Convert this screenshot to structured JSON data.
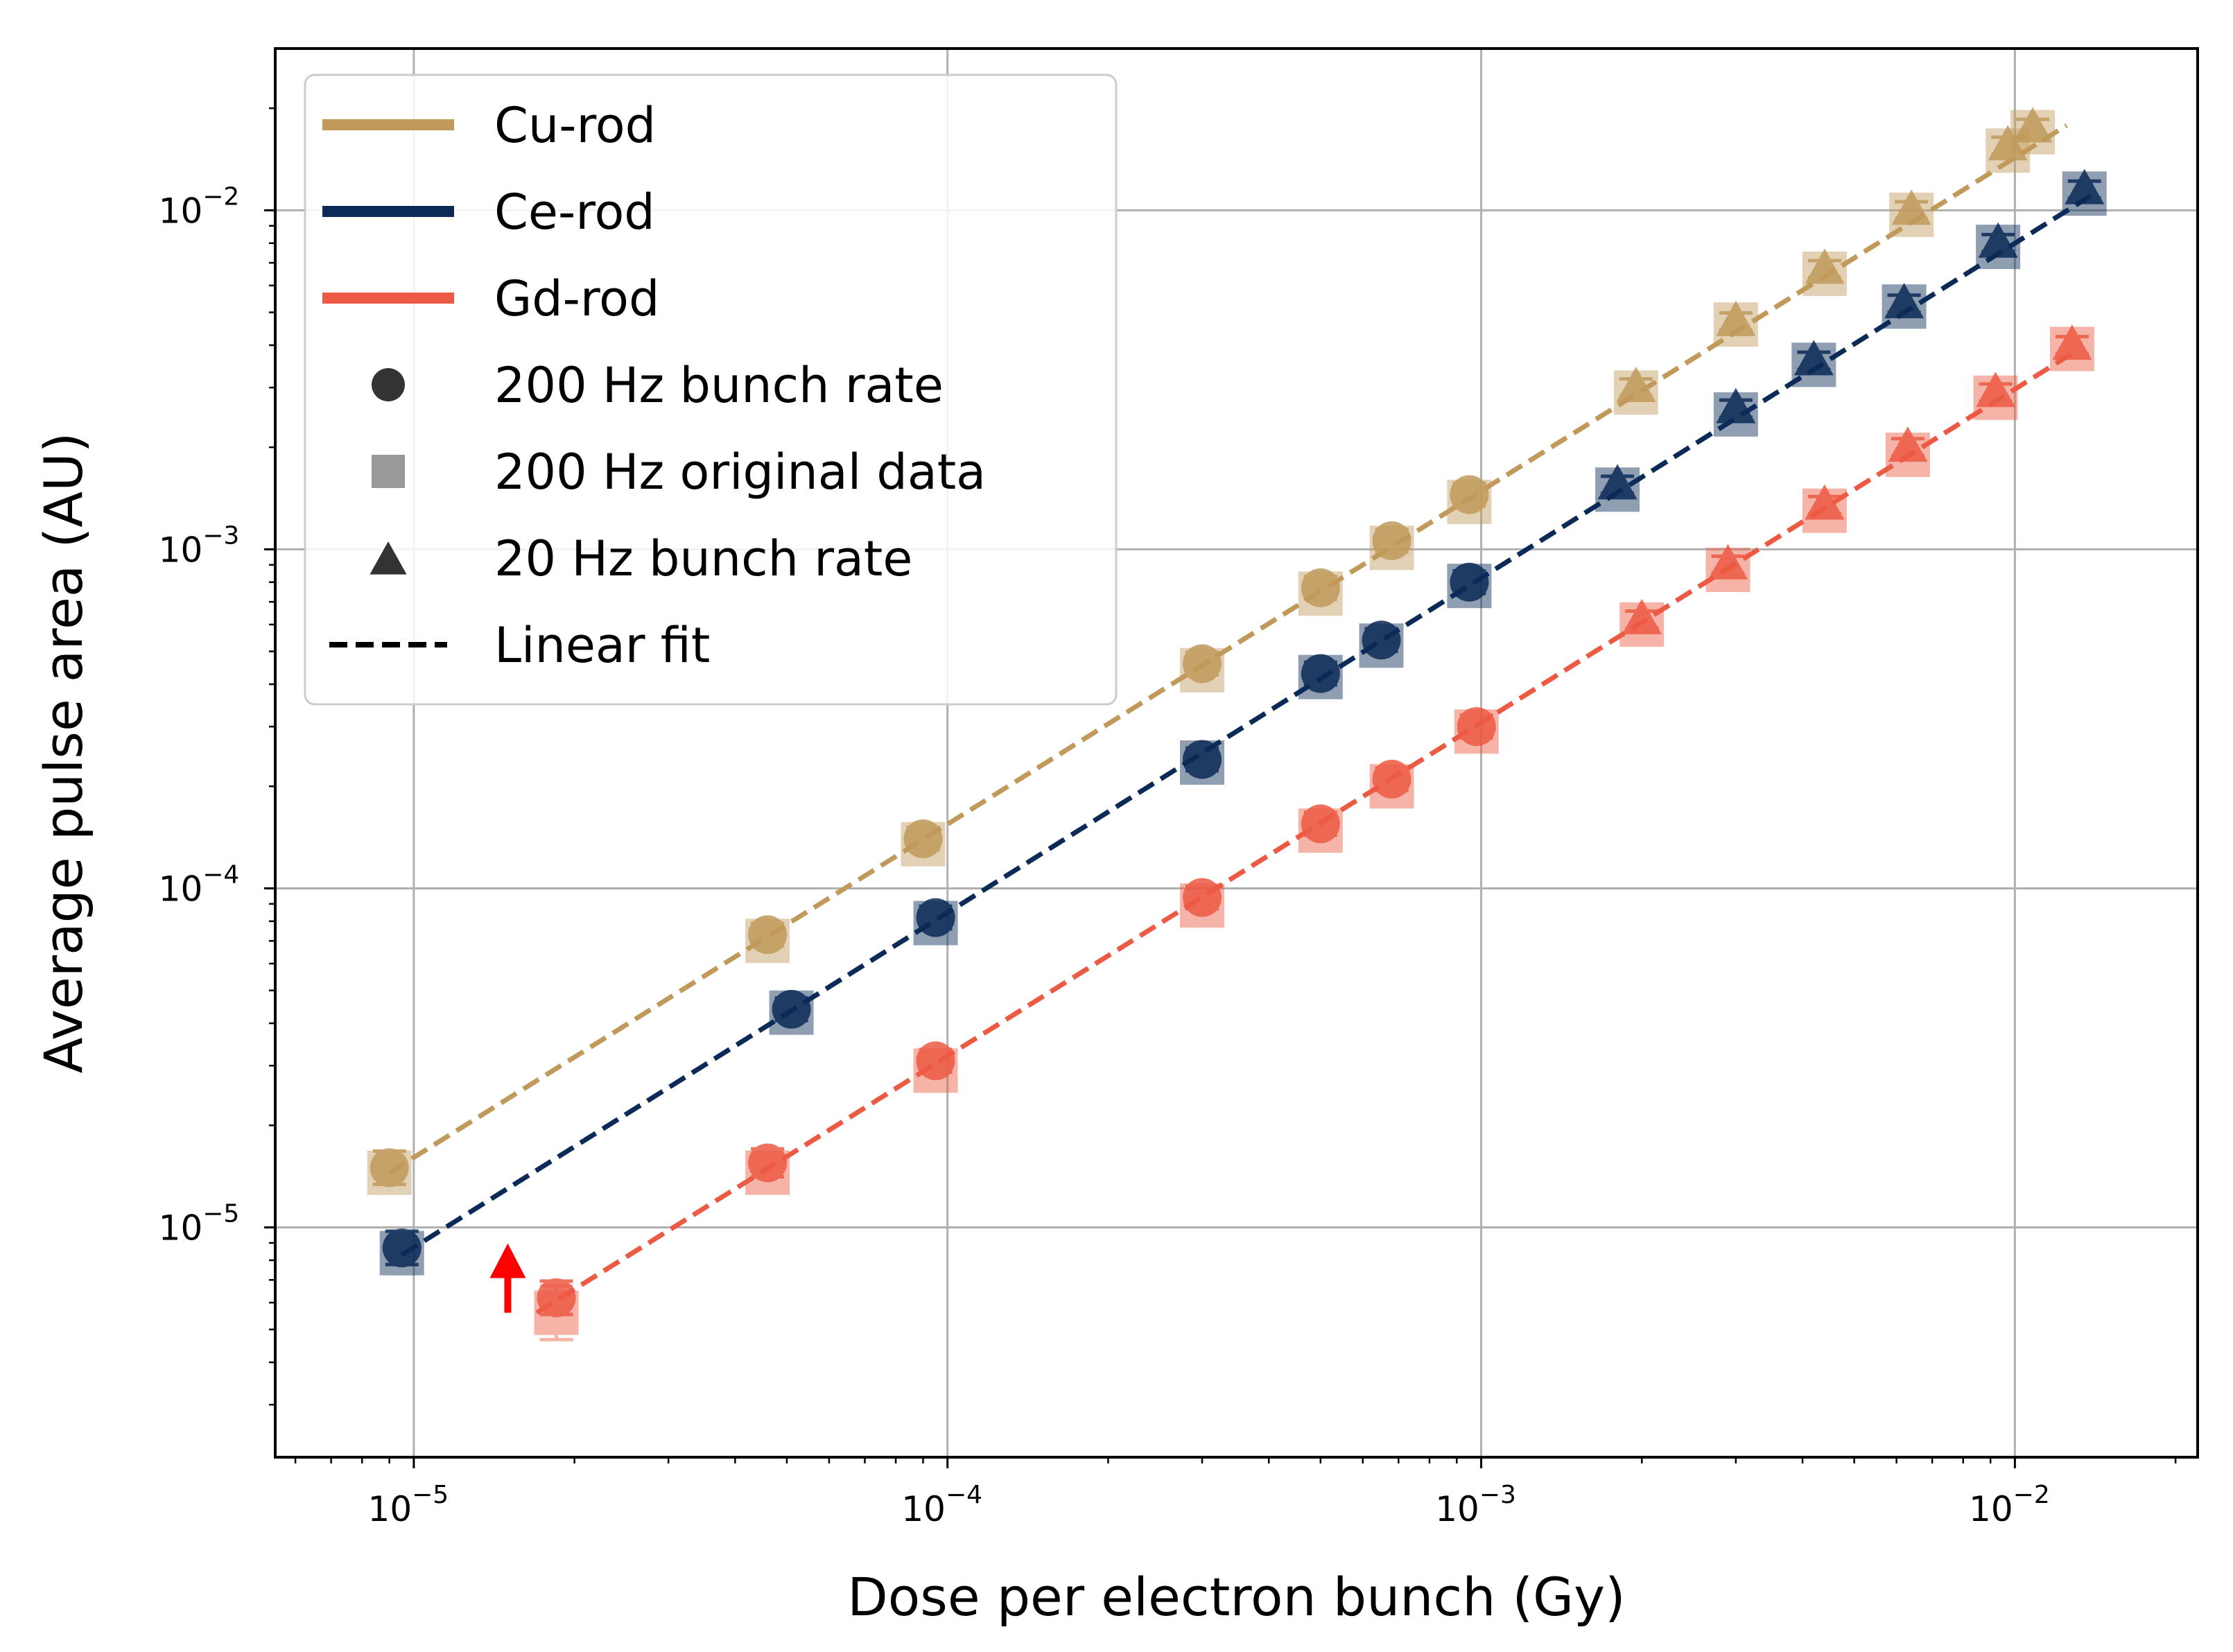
{
  "chart_data": {
    "type": "scatter",
    "xscale": "log",
    "yscale": "log",
    "xlabel": "Dose per electron bunch (Gy)",
    "ylabel": "Average pulse area (AU)",
    "xlim": [
      5.5e-06,
      0.022
    ],
    "ylim": [
      2.1e-06,
      0.03
    ],
    "grid": true,
    "legend_position": "upper-left",
    "x_ticks": [
      {
        "value": 1e-05,
        "base": "10",
        "exp": "−5"
      },
      {
        "value": 0.0001,
        "base": "10",
        "exp": "−4"
      },
      {
        "value": 0.001,
        "base": "10",
        "exp": "−3"
      },
      {
        "value": 0.01,
        "base": "10",
        "exp": "−2"
      }
    ],
    "y_ticks": [
      {
        "value": 1e-05,
        "base": "10",
        "exp": "−5"
      },
      {
        "value": 0.0001,
        "base": "10",
        "exp": "−4"
      },
      {
        "value": 0.001,
        "base": "10",
        "exp": "−3"
      },
      {
        "value": 0.01,
        "base": "10",
        "exp": "−2"
      }
    ],
    "legend": [
      {
        "label": "Cu-rod",
        "kind": "line",
        "color": "#c19a5b"
      },
      {
        "label": "Ce-rod",
        "kind": "line",
        "color": "#0b2a57"
      },
      {
        "label": "Gd-rod",
        "kind": "line",
        "color": "#ec5a43"
      },
      {
        "label": "200 Hz bunch rate",
        "kind": "circle",
        "color": "#333333"
      },
      {
        "label": "200 Hz original data",
        "kind": "square",
        "color": "#999999"
      },
      {
        "label": "20 Hz bunch rate",
        "kind": "triangle",
        "color": "#333333"
      },
      {
        "label": "Linear fit",
        "kind": "dashed",
        "color": "#000000"
      }
    ],
    "series": [
      {
        "name": "Cu-rod",
        "color": "#c19a5b",
        "fit": {
          "x": [
            9e-06,
            0.0125
          ],
          "y": [
            1.45e-05,
            0.0178
          ]
        },
        "points": [
          {
            "x": 9e-06,
            "y": 1.5e-05,
            "m": "circle",
            "err": 0.12
          },
          {
            "x": 9e-06,
            "y": 1.45e-05,
            "m": "square",
            "err": 0.15
          },
          {
            "x": 4.6e-05,
            "y": 7.3e-05,
            "m": "circle",
            "err": 0.08
          },
          {
            "x": 4.6e-05,
            "y": 7e-05,
            "m": "square",
            "err": 0.1
          },
          {
            "x": 9e-05,
            "y": 0.00014,
            "m": "circle",
            "err": 0.08
          },
          {
            "x": 9e-05,
            "y": 0.000135,
            "m": "square",
            "err": 0.1
          },
          {
            "x": 0.0003,
            "y": 0.00046,
            "m": "circle",
            "err": 0.08
          },
          {
            "x": 0.0003,
            "y": 0.00044,
            "m": "square",
            "err": 0.1
          },
          {
            "x": 0.0005,
            "y": 0.00077,
            "m": "circle",
            "err": 0.08
          },
          {
            "x": 0.0005,
            "y": 0.00074,
            "m": "square",
            "err": 0.1
          },
          {
            "x": 0.00068,
            "y": 0.00106,
            "m": "circle",
            "err": 0.08
          },
          {
            "x": 0.00068,
            "y": 0.00101,
            "m": "square",
            "err": 0.1
          },
          {
            "x": 0.00095,
            "y": 0.00145,
            "m": "circle",
            "err": 0.08
          },
          {
            "x": 0.00095,
            "y": 0.00138,
            "m": "square",
            "err": 0.1
          },
          {
            "x": 0.00195,
            "y": 0.003,
            "m": "triangle",
            "err": 0.06
          },
          {
            "x": 0.00195,
            "y": 0.0029,
            "m": "square",
            "err": 0.08
          },
          {
            "x": 0.003,
            "y": 0.0047,
            "m": "triangle",
            "err": 0.06
          },
          {
            "x": 0.003,
            "y": 0.0046,
            "m": "square",
            "err": 0.08
          },
          {
            "x": 0.0044,
            "y": 0.0067,
            "m": "triangle",
            "err": 0.06
          },
          {
            "x": 0.0044,
            "y": 0.0065,
            "m": "square",
            "err": 0.08
          },
          {
            "x": 0.0064,
            "y": 0.01,
            "m": "triangle",
            "err": 0.06
          },
          {
            "x": 0.0064,
            "y": 0.0097,
            "m": "square",
            "err": 0.08
          },
          {
            "x": 0.0097,
            "y": 0.0155,
            "m": "triangle",
            "err": 0.06
          },
          {
            "x": 0.0097,
            "y": 0.015,
            "m": "square",
            "err": 0.08
          },
          {
            "x": 0.0108,
            "y": 0.0175,
            "m": "triangle",
            "err": 0.06
          },
          {
            "x": 0.0108,
            "y": 0.017,
            "m": "square",
            "err": 0.08
          }
        ]
      },
      {
        "name": "Ce-rod",
        "color": "#0b2a57",
        "fit": {
          "x": [
            9.5e-06,
            0.0142
          ],
          "y": [
            8.3e-06,
            0.0113
          ]
        },
        "points": [
          {
            "x": 9.5e-06,
            "y": 8.7e-06,
            "m": "circle",
            "err": 0.12
          },
          {
            "x": 9.5e-06,
            "y": 8.4e-06,
            "m": "square",
            "err": 0.15
          },
          {
            "x": 5.1e-05,
            "y": 4.4e-05,
            "m": "circle",
            "err": 0.08
          },
          {
            "x": 5.1e-05,
            "y": 4.3e-05,
            "m": "square",
            "err": 0.1
          },
          {
            "x": 9.5e-05,
            "y": 8.2e-05,
            "m": "circle",
            "err": 0.08
          },
          {
            "x": 9.5e-05,
            "y": 7.9e-05,
            "m": "square",
            "err": 0.1
          },
          {
            "x": 0.0003,
            "y": 0.00024,
            "m": "circle",
            "err": 0.08
          },
          {
            "x": 0.0003,
            "y": 0.000235,
            "m": "square",
            "err": 0.1
          },
          {
            "x": 0.0005,
            "y": 0.00043,
            "m": "circle",
            "err": 0.08
          },
          {
            "x": 0.0005,
            "y": 0.00042,
            "m": "square",
            "err": 0.1
          },
          {
            "x": 0.00065,
            "y": 0.00054,
            "m": "circle",
            "err": 0.08
          },
          {
            "x": 0.00065,
            "y": 0.00052,
            "m": "square",
            "err": 0.1
          },
          {
            "x": 0.00095,
            "y": 0.0008,
            "m": "circle",
            "err": 0.08
          },
          {
            "x": 0.00095,
            "y": 0.00078,
            "m": "square",
            "err": 0.1
          },
          {
            "x": 0.0018,
            "y": 0.00155,
            "m": "triangle",
            "err": 0.06
          },
          {
            "x": 0.0018,
            "y": 0.0015,
            "m": "square",
            "err": 0.08
          },
          {
            "x": 0.003,
            "y": 0.0026,
            "m": "triangle",
            "err": 0.06
          },
          {
            "x": 0.003,
            "y": 0.0025,
            "m": "square",
            "err": 0.08
          },
          {
            "x": 0.0042,
            "y": 0.0036,
            "m": "triangle",
            "err": 0.06
          },
          {
            "x": 0.0042,
            "y": 0.0035,
            "m": "square",
            "err": 0.08
          },
          {
            "x": 0.0062,
            "y": 0.0053,
            "m": "triangle",
            "err": 0.06
          },
          {
            "x": 0.0062,
            "y": 0.0052,
            "m": "square",
            "err": 0.08
          },
          {
            "x": 0.0093,
            "y": 0.008,
            "m": "triangle",
            "err": 0.06
          },
          {
            "x": 0.0093,
            "y": 0.0078,
            "m": "square",
            "err": 0.08
          },
          {
            "x": 0.0135,
            "y": 0.0115,
            "m": "triangle",
            "err": 0.06
          },
          {
            "x": 0.0135,
            "y": 0.0112,
            "m": "square",
            "err": 0.08
          }
        ]
      },
      {
        "name": "Gd-rod",
        "color": "#ec5a43",
        "fit": {
          "x": [
            1.7e-05,
            0.0132
          ],
          "y": [
            5.6e-06,
            0.0039
          ]
        },
        "points": [
          {
            "x": 1.85e-05,
            "y": 6.2e-06,
            "m": "circle",
            "err": 0.12
          },
          {
            "x": 1.85e-05,
            "y": 5.6e-06,
            "m": "square",
            "err": 0.2
          },
          {
            "x": 4.6e-05,
            "y": 1.55e-05,
            "m": "circle",
            "err": 0.1
          },
          {
            "x": 4.6e-05,
            "y": 1.45e-05,
            "m": "square",
            "err": 0.14
          },
          {
            "x": 9.5e-05,
            "y": 3.1e-05,
            "m": "circle",
            "err": 0.08
          },
          {
            "x": 9.5e-05,
            "y": 2.9e-05,
            "m": "square",
            "err": 0.1
          },
          {
            "x": 0.0003,
            "y": 9.4e-05,
            "m": "circle",
            "err": 0.08
          },
          {
            "x": 0.0003,
            "y": 8.9e-05,
            "m": "square",
            "err": 0.1
          },
          {
            "x": 0.0005,
            "y": 0.000155,
            "m": "circle",
            "err": 0.08
          },
          {
            "x": 0.0005,
            "y": 0.000148,
            "m": "square",
            "err": 0.1
          },
          {
            "x": 0.00068,
            "y": 0.00021,
            "m": "circle",
            "err": 0.08
          },
          {
            "x": 0.00068,
            "y": 0.0002,
            "m": "square",
            "err": 0.1
          },
          {
            "x": 0.00098,
            "y": 0.0003,
            "m": "circle",
            "err": 0.08
          },
          {
            "x": 0.00098,
            "y": 0.00029,
            "m": "square",
            "err": 0.1
          },
          {
            "x": 0.002,
            "y": 0.00062,
            "m": "triangle",
            "err": 0.06
          },
          {
            "x": 0.002,
            "y": 0.0006,
            "m": "square",
            "err": 0.08
          },
          {
            "x": 0.0029,
            "y": 0.0009,
            "m": "triangle",
            "err": 0.06
          },
          {
            "x": 0.0029,
            "y": 0.00087,
            "m": "square",
            "err": 0.08
          },
          {
            "x": 0.0044,
            "y": 0.00135,
            "m": "triangle",
            "err": 0.06
          },
          {
            "x": 0.0044,
            "y": 0.0013,
            "m": "square",
            "err": 0.08
          },
          {
            "x": 0.0063,
            "y": 0.002,
            "m": "triangle",
            "err": 0.06
          },
          {
            "x": 0.0063,
            "y": 0.0019,
            "m": "square",
            "err": 0.08
          },
          {
            "x": 0.0092,
            "y": 0.0029,
            "m": "triangle",
            "err": 0.06
          },
          {
            "x": 0.0092,
            "y": 0.0028,
            "m": "square",
            "err": 0.08
          },
          {
            "x": 0.0128,
            "y": 0.004,
            "m": "triangle",
            "err": 0.06
          },
          {
            "x": 0.0128,
            "y": 0.0039,
            "m": "square",
            "err": 0.08
          }
        ]
      }
    ],
    "annotations": [
      {
        "kind": "arrow-up",
        "x": 1.5e-05,
        "y": 5.6e-06,
        "color": "#ff0000"
      }
    ]
  }
}
